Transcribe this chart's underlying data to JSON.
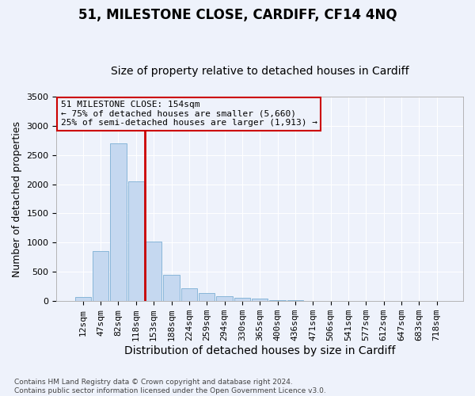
{
  "title": "51, MILESTONE CLOSE, CARDIFF, CF14 4NQ",
  "subtitle": "Size of property relative to detached houses in Cardiff",
  "xlabel": "Distribution of detached houses by size in Cardiff",
  "ylabel": "Number of detached properties",
  "categories": [
    "12sqm",
    "47sqm",
    "82sqm",
    "118sqm",
    "153sqm",
    "188sqm",
    "224sqm",
    "259sqm",
    "294sqm",
    "330sqm",
    "365sqm",
    "400sqm",
    "436sqm",
    "471sqm",
    "506sqm",
    "541sqm",
    "577sqm",
    "612sqm",
    "647sqm",
    "683sqm",
    "718sqm"
  ],
  "bar_heights": [
    75,
    850,
    2700,
    2050,
    1020,
    450,
    215,
    140,
    80,
    60,
    40,
    20,
    10,
    5,
    5,
    3,
    2,
    2,
    1,
    1,
    0
  ],
  "bar_color": "#c5d8f0",
  "bar_edge_color": "#7bafd4",
  "property_line_color": "#cc0000",
  "property_line_index": 3.5,
  "annotation_text": "51 MILESTONE CLOSE: 154sqm\n← 75% of detached houses are smaller (5,660)\n25% of semi-detached houses are larger (1,913) →",
  "annotation_box_edge": "#cc0000",
  "ylim": [
    0,
    3500
  ],
  "yticks": [
    0,
    500,
    1000,
    1500,
    2000,
    2500,
    3000,
    3500
  ],
  "footer": "Contains HM Land Registry data © Crown copyright and database right 2024.\nContains public sector information licensed under the Open Government Licence v3.0.",
  "background_color": "#eef2fb",
  "grid_color": "#ffffff",
  "title_fontsize": 12,
  "subtitle_fontsize": 10,
  "xlabel_fontsize": 10,
  "ylabel_fontsize": 9,
  "tick_fontsize": 8,
  "annotation_fontsize": 8,
  "footer_fontsize": 6.5
}
